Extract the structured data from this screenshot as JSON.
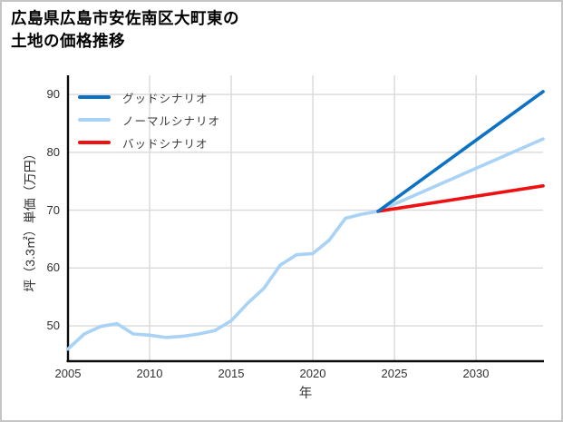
{
  "title": {
    "line1": "広島県広島市安佐南区大町東の",
    "line2": "土地の価格推移"
  },
  "chart_data": {
    "type": "line",
    "title": "広島県広島市安佐南区大町東の土地の価格推移",
    "xlabel": "年",
    "ylabel": "坪（3.3㎡）単価（万円）",
    "xlim": [
      2005,
      2034.1
    ],
    "ylim": [
      43.9,
      93.3
    ],
    "xticks": [
      2005,
      2010,
      2015,
      2020,
      2025,
      2030
    ],
    "yticks": [
      50,
      60,
      70,
      80,
      90
    ],
    "grid": true,
    "legend_position": "top-left-inside",
    "colors": {
      "good": "#0d72c3",
      "normal": "#a8d2f6",
      "bad": "#ee1111",
      "grid": "#d9d9d9",
      "axis": "#0a0a0a",
      "tick_text": "#303030"
    },
    "legend": [
      {
        "label": "グッドシナリオ",
        "color_key": "good"
      },
      {
        "label": "ノーマルシナリオ",
        "color_key": "normal"
      },
      {
        "label": "バッドシナリオ",
        "color_key": "bad"
      }
    ],
    "series": [
      {
        "key": "historical",
        "color_key": "normal",
        "x": [
          2005,
          2006,
          2007,
          2008,
          2009,
          2010,
          2011,
          2012,
          2013,
          2014,
          2015,
          2016,
          2017,
          2018,
          2019,
          2020,
          2021,
          2022,
          2023,
          2024
        ],
        "y": [
          46.0,
          48.6,
          49.9,
          50.4,
          48.6,
          48.4,
          48.0,
          48.2,
          48.6,
          49.2,
          50.9,
          53.9,
          56.5,
          60.5,
          62.3,
          62.5,
          64.8,
          68.6,
          69.3,
          69.8
        ]
      },
      {
        "key": "normal_forecast",
        "color_key": "normal",
        "x": [
          2024,
          2034.1
        ],
        "y": [
          69.8,
          82.3
        ]
      },
      {
        "key": "bad_forecast",
        "color_key": "bad",
        "x": [
          2024,
          2034.1
        ],
        "y": [
          69.8,
          74.2
        ]
      },
      {
        "key": "good_forecast",
        "color_key": "good",
        "x": [
          2024,
          2034.1
        ],
        "y": [
          69.8,
          90.5
        ]
      }
    ]
  }
}
